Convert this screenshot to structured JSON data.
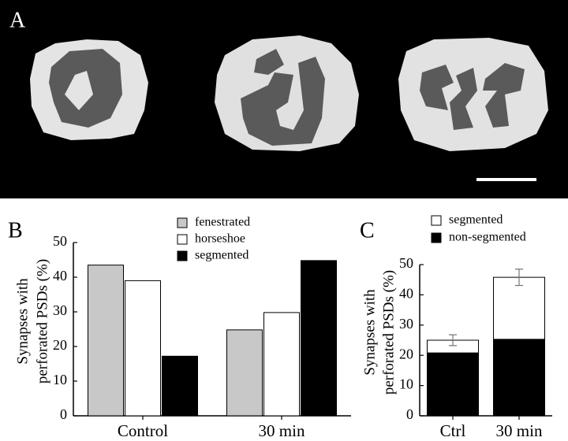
{
  "panel_labels": [
    "A",
    "B",
    "C"
  ],
  "chart_data": [
    {
      "type": "bar",
      "ylabel": [
        "Synapses with",
        "perforated PSDs (%)"
      ],
      "categories": [
        "Control",
        "30 min"
      ],
      "series": [
        {
          "name": "fenestrated",
          "color": "#c8c8c8",
          "values": [
            43.5,
            24.8
          ]
        },
        {
          "name": "horseshoe",
          "color": "#ffffff",
          "values": [
            39,
            29.8
          ]
        },
        {
          "name": "segmented",
          "color": "#000000",
          "values": [
            17.2,
            44.8
          ]
        }
      ],
      "ylim": [
        0,
        50
      ],
      "yticks": [
        0,
        10,
        20,
        30,
        40,
        50
      ]
    },
    {
      "type": "stacked_bar",
      "ylabel": [
        "Synapses with",
        "perforated PSDs (%)"
      ],
      "categories": [
        "Ctrl",
        "30 min"
      ],
      "series": [
        {
          "name": "segmented",
          "color": "#ffffff",
          "values": [
            4.2,
            20.5
          ],
          "errors": [
            1.8,
            2.7
          ]
        },
        {
          "name": "non-segmented",
          "color": "#000000",
          "values": [
            20.8,
            25.3
          ]
        }
      ],
      "ylim": [
        0,
        50
      ],
      "yticks": [
        0,
        10,
        20,
        30,
        40,
        50
      ]
    }
  ]
}
